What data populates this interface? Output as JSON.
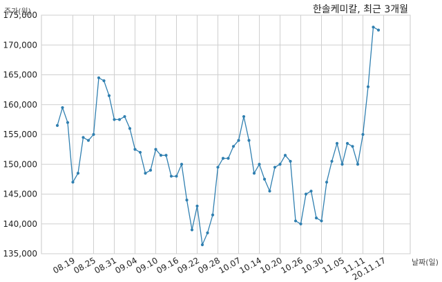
{
  "chart_data": {
    "type": "line",
    "title": "한솔케미칼, 최근 3개월",
    "ylabel": "주가(원)",
    "xlabel": "날짜(일)",
    "ylim": [
      135000,
      175000
    ],
    "yticks": [
      135000,
      140000,
      145000,
      150000,
      155000,
      160000,
      165000,
      170000,
      175000
    ],
    "ytick_labels": [
      "135,000",
      "140,000",
      "145,000",
      "150,000",
      "155,000",
      "160,000",
      "165,000",
      "170,000",
      "175,000"
    ],
    "xtick_labels": [
      "08.19",
      "08.25",
      "08.31",
      "09.04",
      "09.10",
      "09.16",
      "09.22",
      "09.28",
      "10.07",
      "10.14",
      "10.20",
      "10.26",
      "10.30",
      "11.05",
      "11.11",
      "20.11.17"
    ],
    "xtick_positions": [
      3,
      7,
      11,
      15,
      19,
      23,
      27,
      31,
      35,
      39,
      43,
      47,
      51,
      55,
      59,
      63
    ],
    "grid": true,
    "line_color": "#2f7fb0",
    "series": [
      {
        "values": [
          156500,
          159500,
          157000,
          147000,
          148500,
          154500,
          154000,
          155000,
          164500,
          164000,
          161500,
          157500,
          157500,
          158000,
          156000,
          152500,
          152000,
          148500,
          149000,
          152500,
          151500,
          151500,
          148000,
          148000,
          150000,
          144000,
          139000,
          143000,
          136500,
          138500,
          141500,
          149500,
          151000,
          151000,
          153000,
          154000,
          158000,
          154000,
          148500,
          150000,
          147500,
          145500,
          149500,
          150000,
          151500,
          150500,
          140500,
          140000,
          145000,
          145500,
          141000,
          140500,
          147000,
          150500,
          153500,
          150000,
          153500,
          153000,
          150000,
          155000,
          163000,
          173000,
          172500
        ]
      }
    ]
  }
}
